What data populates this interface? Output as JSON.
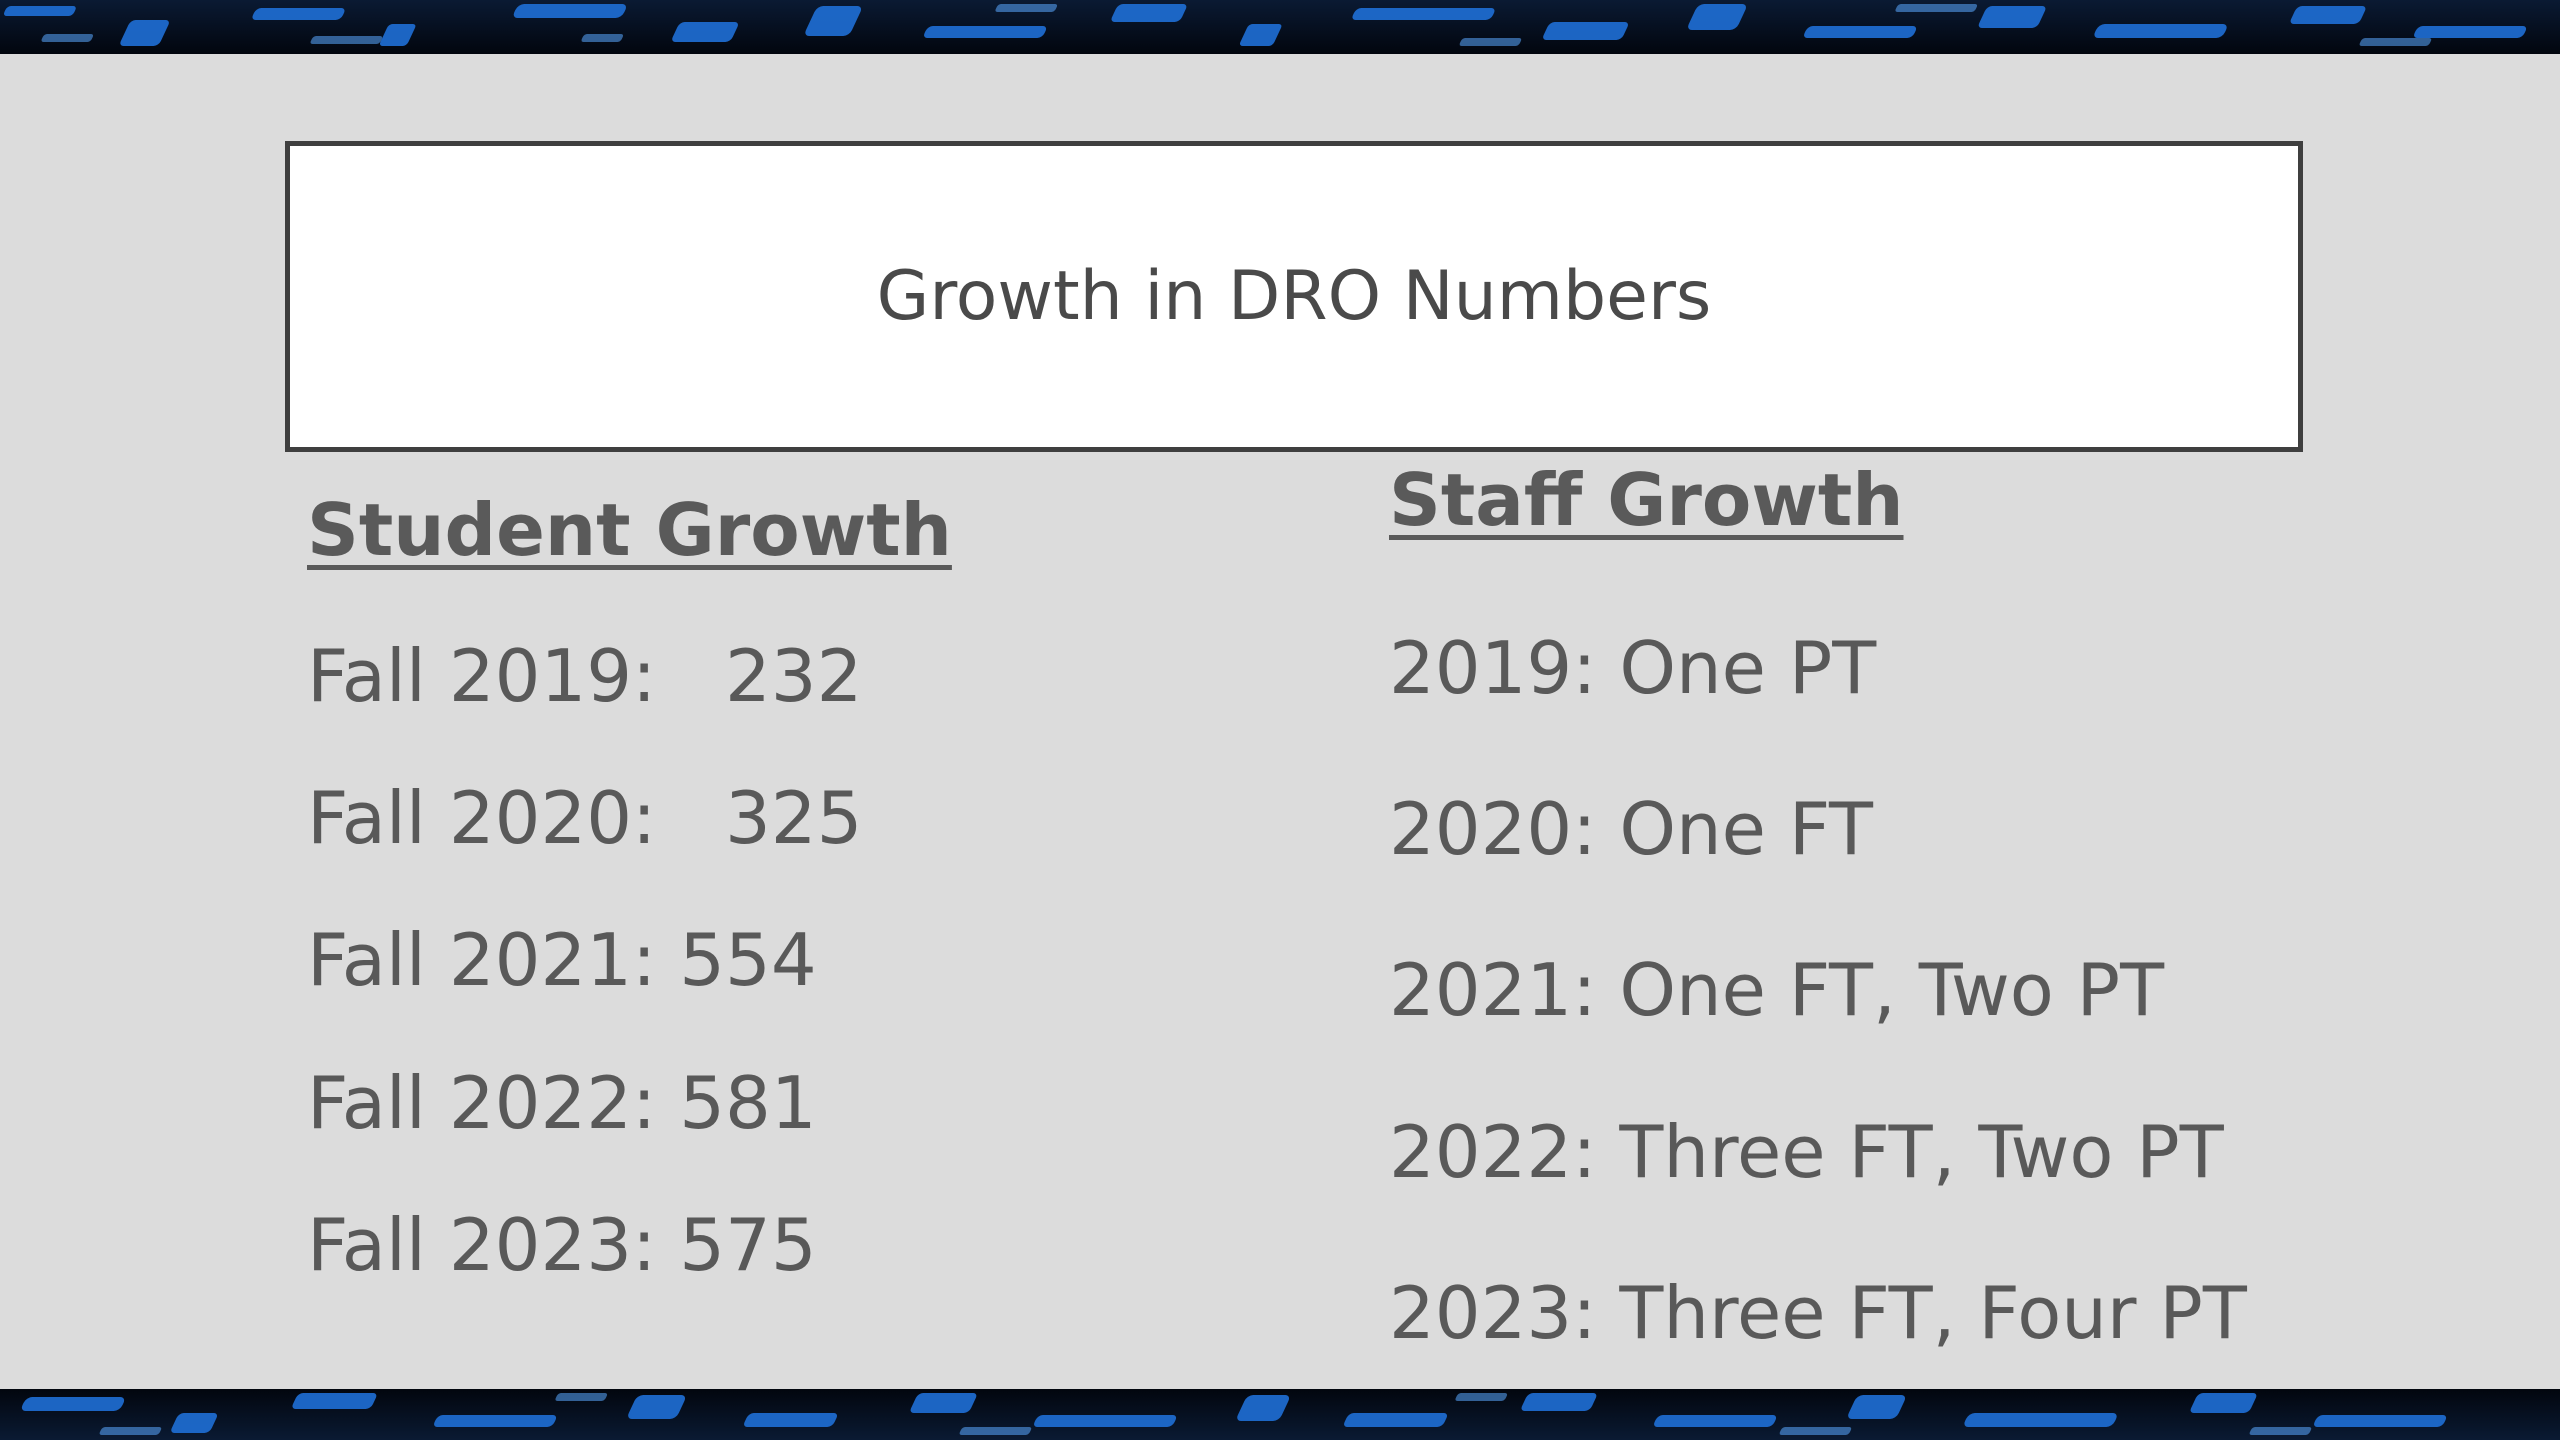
{
  "slide": {
    "title": "Growth in DRO Numbers"
  },
  "student_growth": {
    "heading": "Student Growth",
    "rows": [
      "Fall 2019:   232",
      "Fall 2020:   325",
      "Fall 2021: 554",
      "Fall 2022: 581",
      "Fall 2023: 575"
    ]
  },
  "staff_growth": {
    "heading": "Staff Growth",
    "rows": [
      "2019: One PT",
      "2020: One FT",
      "2021: One FT, Two PT",
      "2022: Three FT, Two PT",
      "2023: Three FT, Four PT"
    ]
  },
  "colors": {
    "background": "#dcdcdc",
    "band_dark": "#050b18",
    "band_blue": "#1f6fd6",
    "text": "#595959",
    "title_box": "#ffffff"
  }
}
